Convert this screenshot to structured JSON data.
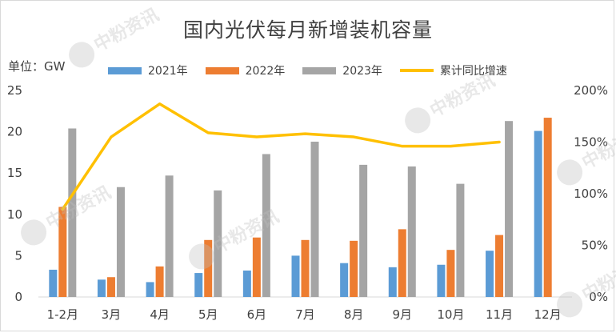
{
  "chart_data": {
    "type": "bar",
    "title": "国内光伏每月新增装机容量",
    "unit_label": "单位：GW",
    "categories": [
      "1-2月",
      "3月",
      "4月",
      "5月",
      "6月",
      "7月",
      "8月",
      "9月",
      "10月",
      "11月",
      "12月"
    ],
    "series": [
      {
        "name": "2021年",
        "color": "#5b9bd5",
        "values": [
          3.3,
          2.1,
          1.8,
          2.9,
          3.2,
          5.0,
          4.1,
          3.6,
          3.9,
          5.6,
          20.1
        ]
      },
      {
        "name": "2022年",
        "color": "#ed7d31",
        "values": [
          10.9,
          2.4,
          3.7,
          6.9,
          7.2,
          6.9,
          6.8,
          8.2,
          5.7,
          7.5,
          21.7
        ]
      },
      {
        "name": "2023年",
        "color": "#a5a5a5",
        "values": [
          20.4,
          13.3,
          14.7,
          12.9,
          17.3,
          18.8,
          16.0,
          15.8,
          13.7,
          21.3,
          null
        ]
      }
    ],
    "line_series": {
      "name": "累计同比增速",
      "color": "#ffc000",
      "axis": "right",
      "values": [
        0.85,
        1.55,
        1.87,
        1.59,
        1.55,
        1.58,
        1.55,
        1.46,
        1.46,
        1.5,
        null
      ]
    },
    "ylim_left": [
      0,
      25
    ],
    "yticks_left": [
      "0",
      "5",
      "10",
      "15",
      "20",
      "25"
    ],
    "ylim_right": [
      0,
      2
    ],
    "yticks_right": [
      "0%",
      "50%",
      "100%",
      "150%",
      "200%"
    ],
    "grid": false,
    "legend_position": "top"
  },
  "watermark": "中粉资讯"
}
